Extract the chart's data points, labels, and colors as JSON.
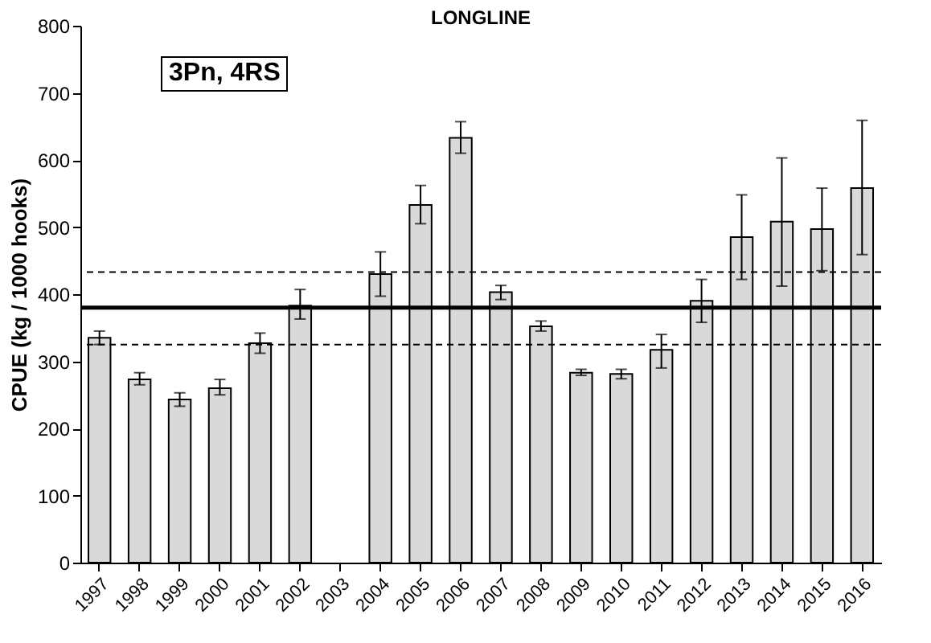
{
  "chart_data": {
    "type": "bar",
    "title": "LONGLINE",
    "ylabel": "CPUE (kg / 1000 hooks)",
    "categories": [
      "1997",
      "1998",
      "1999",
      "2000",
      "2001",
      "2002",
      "2003",
      "2004",
      "2005",
      "2006",
      "2007",
      "2008",
      "2009",
      "2010",
      "2011",
      "2012",
      "2013",
      "2014",
      "2015",
      "2016"
    ],
    "values": [
      335,
      273,
      243,
      260,
      327,
      383,
      null,
      430,
      533,
      633,
      403,
      352,
      283,
      281,
      317,
      390,
      485,
      508,
      497,
      558
    ],
    "errors": [
      [
        325,
        345
      ],
      [
        265,
        283
      ],
      [
        233,
        253
      ],
      [
        250,
        273
      ],
      [
        312,
        342
      ],
      [
        363,
        407
      ],
      null,
      [
        397,
        463
      ],
      [
        505,
        562
      ],
      [
        610,
        657
      ],
      [
        392,
        413
      ],
      [
        345,
        360
      ],
      [
        279,
        288
      ],
      [
        274,
        288
      ],
      [
        290,
        340
      ],
      [
        358,
        422
      ],
      [
        422,
        548
      ],
      [
        412,
        603
      ],
      [
        435,
        558
      ],
      [
        459,
        659
      ]
    ],
    "color": "#d9d9d9",
    "ylim": [
      0,
      800
    ],
    "yticks": [
      0,
      100,
      200,
      300,
      400,
      500,
      600,
      700,
      800
    ],
    "ref_lines": [
      {
        "axis": "y",
        "value": 380,
        "line_style": "solid"
      },
      {
        "axis": "y",
        "value": 433,
        "line_style": "dashed"
      },
      {
        "axis": "y",
        "value": 325,
        "line_style": "dashed"
      }
    ],
    "annotations": [
      "3Pn, 4RS"
    ]
  }
}
